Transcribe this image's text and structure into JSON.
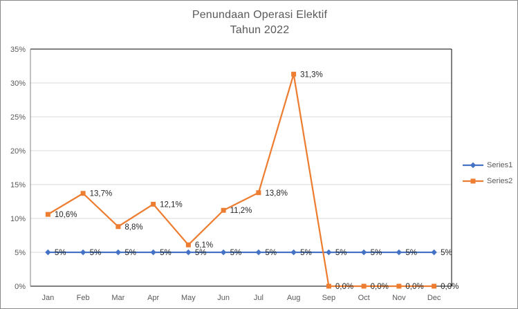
{
  "chart_data": {
    "type": "line",
    "title": "Penundaan Operasi Elektif",
    "subtitle": "Tahun 2022",
    "categories": [
      "Jan",
      "Feb",
      "Mar",
      "Apr",
      "May",
      "Jun",
      "Jul",
      "Aug",
      "Sep",
      "Oct",
      "Nov",
      "Dec"
    ],
    "series": [
      {
        "name": "Series1",
        "color": "#4472C4",
        "marker": "diamond",
        "values": [
          5,
          5,
          5,
          5,
          5,
          5,
          5,
          5,
          5,
          5,
          5,
          5
        ],
        "labels": [
          "5%",
          "5%",
          "5%",
          "5%",
          "5%",
          "5%",
          "5%",
          "5%",
          "5%",
          "5%",
          "5%",
          "5%"
        ]
      },
      {
        "name": "Series2",
        "color": "#ED7D31",
        "marker": "square",
        "values": [
          10.6,
          13.7,
          8.8,
          12.1,
          6.1,
          11.2,
          13.8,
          31.3,
          0,
          0,
          0,
          0
        ],
        "labels": [
          "10,6%",
          "13,7%",
          "8,8%",
          "12,1%",
          "6,1%",
          "11,2%",
          "13,8%",
          "31,3%",
          "0,0%",
          "0,0%",
          "0,0%",
          "0,0%"
        ]
      }
    ],
    "ylim": [
      0,
      35
    ],
    "yticks": [
      {
        "value": 0,
        "label": "0%"
      },
      {
        "value": 5,
        "label": "5%"
      },
      {
        "value": 10,
        "label": "10%"
      },
      {
        "value": 15,
        "label": "15%"
      },
      {
        "value": 20,
        "label": "20%"
      },
      {
        "value": 25,
        "label": "25%"
      },
      {
        "value": 30,
        "label": "30%"
      },
      {
        "value": 35,
        "label": "35%"
      }
    ],
    "grid": true,
    "legend_position": "right",
    "style": {
      "gridline_color": "#D9D9D9",
      "plot_border_color": "#000000",
      "value_axis_line_color": "#808080",
      "axis_text_color": "#595959",
      "title_color": "#595959",
      "data_label_color": "#262626",
      "figure_border_color": "#898989"
    }
  }
}
